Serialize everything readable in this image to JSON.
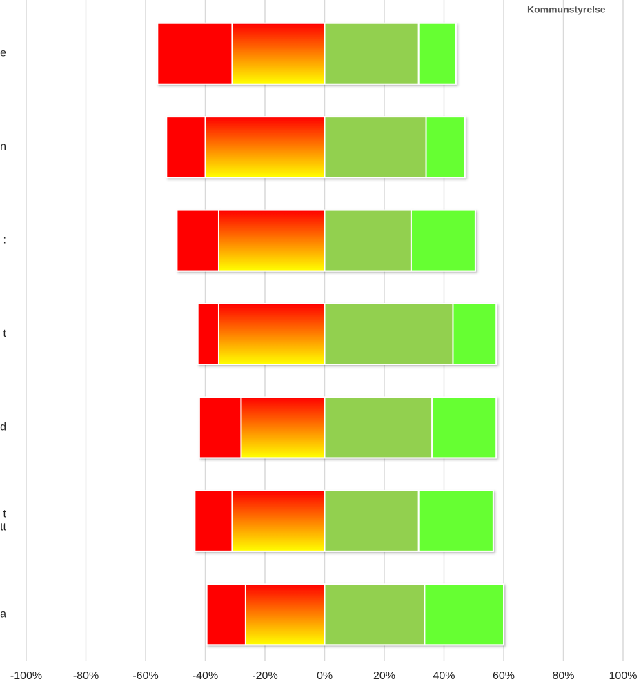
{
  "chart_data": {
    "type": "diverging-bar",
    "title": "Kommunstyrelse",
    "categories": [
      "e",
      "n",
      ":",
      "t",
      "d",
      "t\ntt",
      "a"
    ],
    "series": [
      {
        "color": "#ffff00",
        "gradient": [
          "#ff0000",
          "#ffff00"
        ],
        "values": [
          -31,
          -40,
          -35.5,
          -35.5,
          -28,
          -31,
          -26.5
        ]
      },
      {
        "color": "#ff0000",
        "values": [
          -25,
          -13,
          -14,
          -7,
          -14,
          -12.5,
          -13
        ]
      },
      {
        "color": "#92d050",
        "values": [
          31.5,
          34,
          29,
          43,
          36,
          31.5,
          33.5
        ]
      },
      {
        "color": "#66ff33",
        "values": [
          12.5,
          13,
          21.5,
          14.5,
          21.5,
          25,
          26.5
        ]
      }
    ],
    "xlim": [
      -100,
      100
    ],
    "xticks": [
      {
        "value": -100,
        "label": "-100%"
      },
      {
        "value": -80,
        "label": "-80%"
      },
      {
        "value": -60,
        "label": "-60%"
      },
      {
        "value": -40,
        "label": "-40%"
      },
      {
        "value": -20,
        "label": "-20%"
      },
      {
        "value": 0,
        "label": "0%"
      },
      {
        "value": 20,
        "label": "20%"
      },
      {
        "value": 40,
        "label": "40%"
      },
      {
        "value": 60,
        "label": "60%"
      },
      {
        "value": 80,
        "label": "80%"
      },
      {
        "value": 100,
        "label": "100%"
      }
    ],
    "grid": true
  }
}
